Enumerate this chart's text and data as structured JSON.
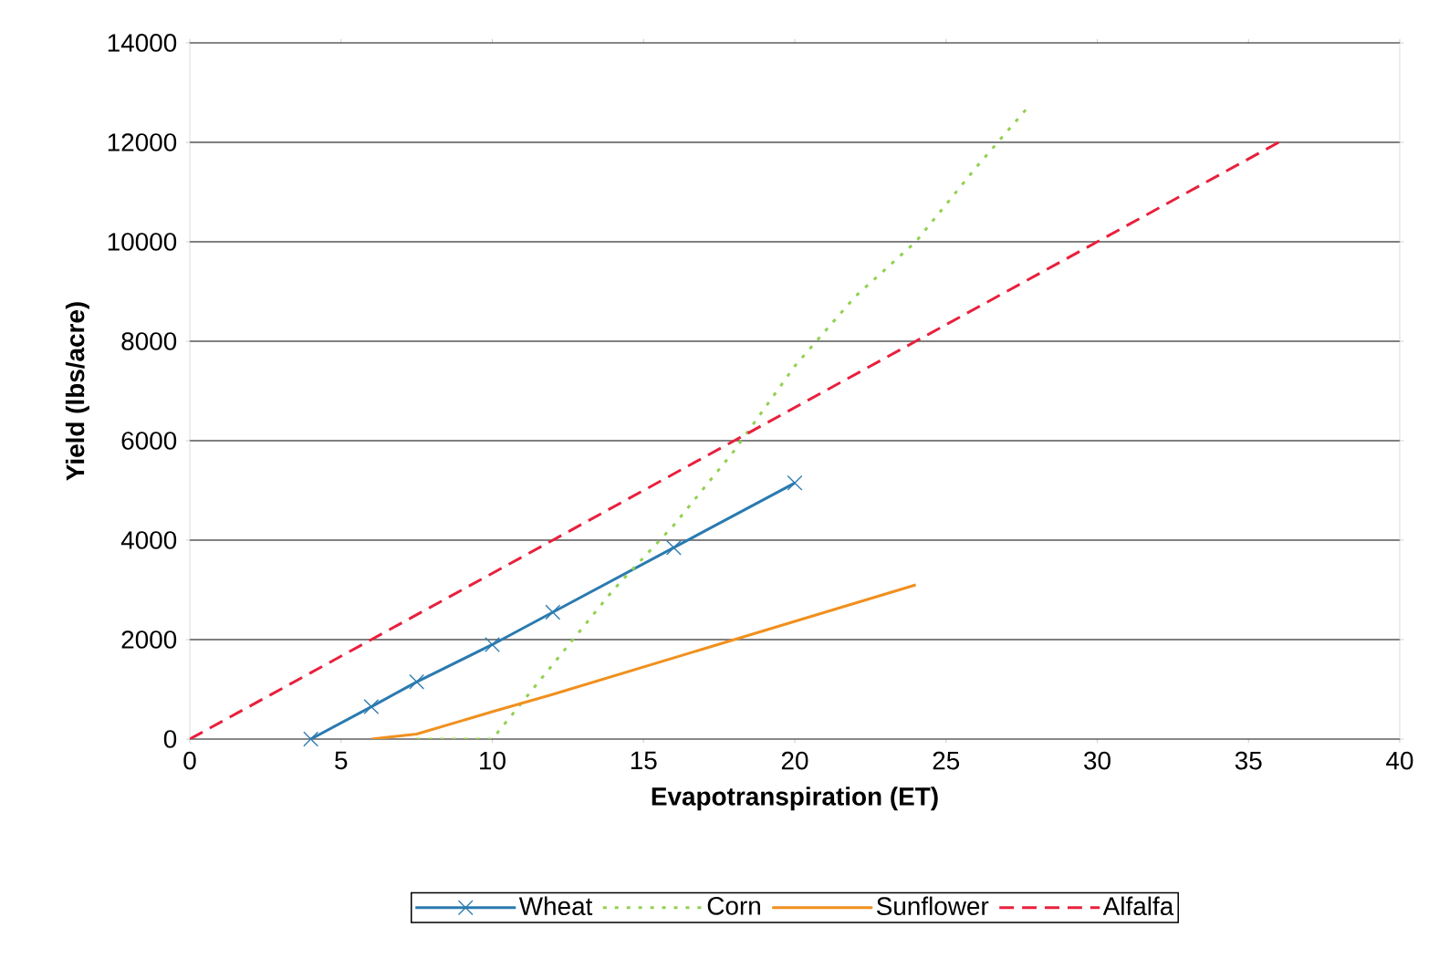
{
  "chart_data": {
    "type": "line",
    "xlabel": "Evapotranspiration (ET)",
    "ylabel": "Yield (lbs/acre)",
    "xlim": [
      0,
      40
    ],
    "xticks": [
      0,
      5,
      10,
      15,
      20,
      25,
      30,
      35,
      40
    ],
    "ylim": [
      0,
      14000
    ],
    "yticks": [
      0,
      2000,
      4000,
      6000,
      8000,
      10000,
      12000,
      14000
    ],
    "grid": "y",
    "legend": "bottom",
    "series": [
      {
        "name": "Wheat",
        "color": "#2a7ab0",
        "marker": "cross",
        "line_style": "solid",
        "x": [
          4,
          6,
          7.5,
          10,
          12,
          16,
          20
        ],
        "values": [
          0,
          650,
          1150,
          1900,
          2550,
          3850,
          5150
        ]
      },
      {
        "name": "Corn",
        "color": "#92d050",
        "marker": "none",
        "line_style": "dotted",
        "x": [
          7.5,
          10,
          12,
          14,
          16,
          18,
          20,
          22,
          24,
          26,
          27.7
        ],
        "values": [
          0,
          0,
          1500,
          3000,
          4300,
          5800,
          7500,
          8900,
          10000,
          11500,
          12700
        ]
      },
      {
        "name": "Sunflower",
        "color": "#f0901e",
        "marker": "none",
        "line_style": "solid",
        "x": [
          6,
          7.5,
          10,
          12,
          15,
          18,
          21,
          24
        ],
        "values": [
          0,
          100,
          550,
          900,
          1450,
          2000,
          2550,
          3100
        ]
      },
      {
        "name": "Alfalfa",
        "color": "#e8203c",
        "marker": "none",
        "line_style": "dashed",
        "x": [
          0,
          6,
          12,
          18,
          24,
          30,
          36
        ],
        "values": [
          0,
          2000,
          4000,
          6000,
          8000,
          10000,
          12000
        ]
      }
    ]
  }
}
